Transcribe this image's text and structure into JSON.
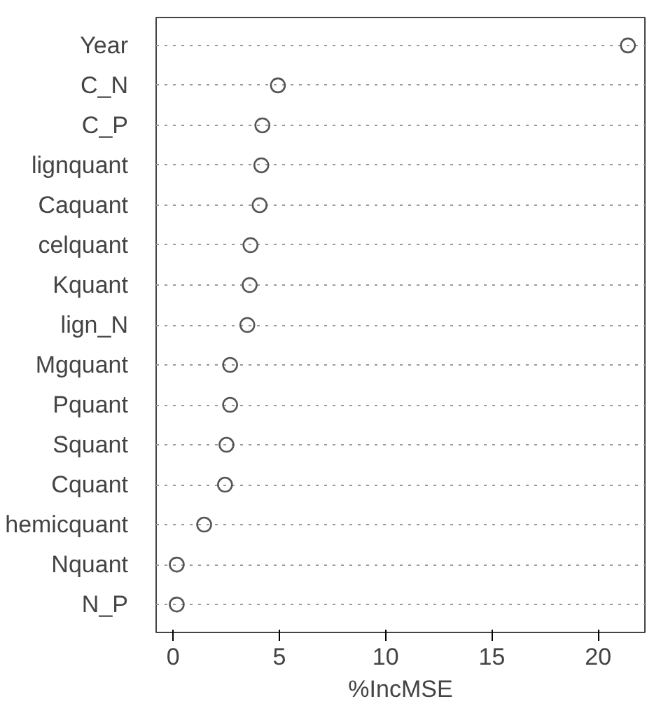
{
  "chart_data": {
    "type": "scatter",
    "xlabel": "%IncMSE",
    "categories": [
      "Year",
      "C_N",
      "C_P",
      "lignquant",
      "Caquant",
      "celquant",
      "Kquant",
      "lign_N",
      "Mgquant",
      "Pquant",
      "Squant",
      "Cquant",
      "hemicquant",
      "Nquant",
      "N_P"
    ],
    "orientation": "horizontal",
    "values": [
      21.4,
      4.93,
      4.2,
      4.15,
      4.07,
      3.64,
      3.6,
      3.49,
      2.68,
      2.68,
      2.51,
      2.44,
      1.46,
      0.17,
      0.17
    ],
    "color": "#555555",
    "marker": "circle",
    "grid": "y",
    "xlim": [
      -0.8,
      22.2
    ],
    "xticks": [
      0,
      5,
      10,
      15,
      20
    ]
  }
}
